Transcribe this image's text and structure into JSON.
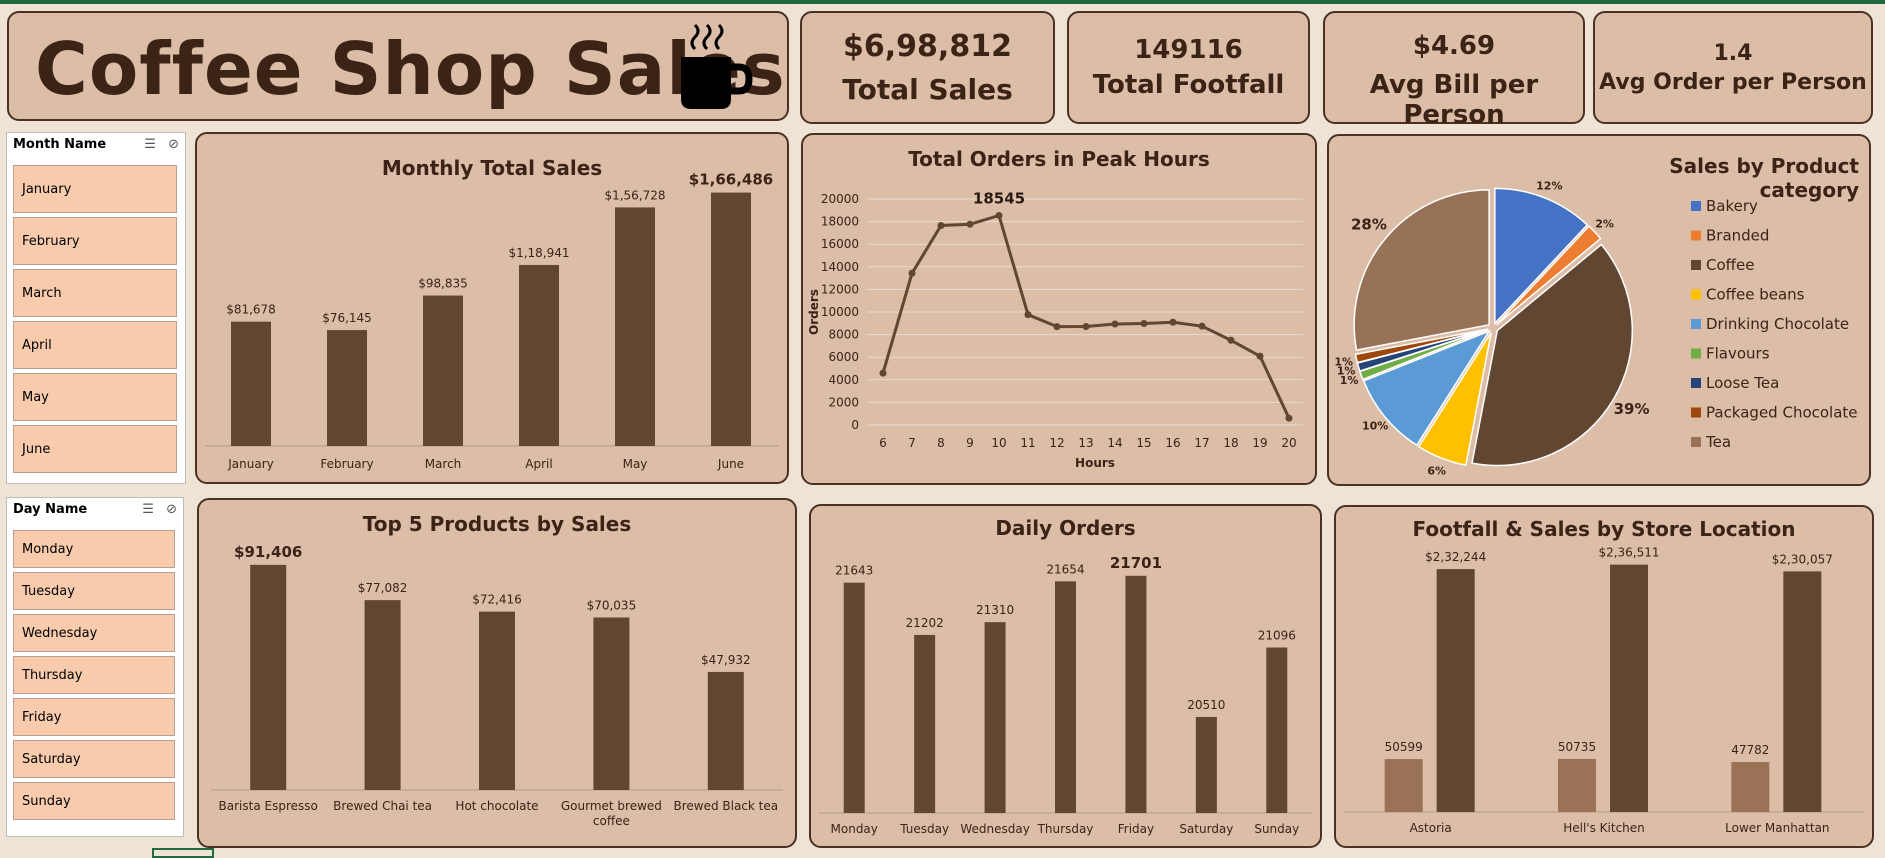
{
  "header": {
    "title": "Coffee Shop Sales",
    "icon": "coffee-cup-icon"
  },
  "kpis": {
    "total_sales": {
      "value": "$6,98,812",
      "label": "Total Sales"
    },
    "total_footfall": {
      "value": "149116",
      "label": "Total Footfall"
    },
    "avg_bill": {
      "value": "$4.69",
      "label": "Avg Bill per Person"
    },
    "avg_order": {
      "value": "1.4",
      "label": "Avg Order per Person"
    }
  },
  "slicers": {
    "month": {
      "header": "Month Name",
      "items": [
        "January",
        "February",
        "March",
        "April",
        "May",
        "June"
      ]
    },
    "day": {
      "header": "Day Name",
      "items": [
        "Monday",
        "Tuesday",
        "Wednesday",
        "Thursday",
        "Friday",
        "Saturday",
        "Sunday"
      ]
    }
  },
  "colors": {
    "bar": "#614631",
    "bar_light": "#9a7356",
    "card": "#dbbda8",
    "border": "#4a3122",
    "slicer_item": "#f8cbad"
  },
  "chart_data": [
    {
      "id": "monthly",
      "type": "bar",
      "title": "Monthly Total Sales",
      "categories": [
        "January",
        "February",
        "March",
        "April",
        "May",
        "June"
      ],
      "values": [
        81678,
        76145,
        98835,
        118941,
        156728,
        166486
      ],
      "labels": [
        "$81,678",
        "$76,145",
        "$98,835",
        "$1,18,941",
        "$1,56,728",
        "$1,66,486"
      ],
      "ylim": [
        0,
        180000
      ]
    },
    {
      "id": "peak",
      "type": "line",
      "title": "Total Orders in Peak Hours",
      "xlabel": "Hours",
      "ylabel": "Orders",
      "x": [
        6,
        7,
        8,
        9,
        10,
        11,
        12,
        13,
        14,
        15,
        16,
        17,
        18,
        19,
        20
      ],
      "values": [
        4594,
        13428,
        17654,
        17764,
        18545,
        9766,
        8708,
        8714,
        8933,
        8979,
        9093,
        8745,
        7498,
        6092,
        603
      ],
      "peak_label": "18545",
      "yticks": [
        0,
        2000,
        4000,
        6000,
        8000,
        10000,
        12000,
        14000,
        16000,
        18000,
        20000
      ],
      "ylim": [
        0,
        20000
      ],
      "grid": true
    },
    {
      "id": "category",
      "type": "pie",
      "title": "Sales by Product category",
      "legend_position": "right",
      "slices": [
        {
          "name": "Bakery",
          "value": 12,
          "label": "12%",
          "color": "#4472c4"
        },
        {
          "name": "Branded",
          "value": 2,
          "label": "2%",
          "color": "#ed7d31"
        },
        {
          "name": "Coffee",
          "value": 39,
          "label": "39%",
          "color": "#614631"
        },
        {
          "name": "Coffee beans",
          "value": 6,
          "label": "6%",
          "color": "#ffc000"
        },
        {
          "name": "Drinking Chocolate",
          "value": 10,
          "label": "10%",
          "color": "#5b9bd5"
        },
        {
          "name": "Flavours",
          "value": 1,
          "label": "1%",
          "color": "#70ad47"
        },
        {
          "name": "Loose Tea",
          "value": 1,
          "label": "1%",
          "color": "#264478"
        },
        {
          "name": "Packaged Chocolate",
          "value": 1,
          "label": "1%",
          "color": "#9e480e"
        },
        {
          "name": "Tea",
          "value": 28,
          "label": "28%",
          "color": "#987256"
        }
      ]
    },
    {
      "id": "top5",
      "type": "bar",
      "title": "Top 5 Products by Sales",
      "categories": [
        "Barista Espresso",
        "Brewed Chai tea",
        "Hot chocolate",
        "Gourmet brewed coffee",
        "Brewed Black tea"
      ],
      "values": [
        91406,
        77082,
        72416,
        70035,
        47932
      ],
      "labels": [
        "$91,406",
        "$77,082",
        "$72,416",
        "$70,035",
        "$47,932"
      ],
      "ylim": [
        0,
        95000
      ]
    },
    {
      "id": "daily",
      "type": "bar",
      "title": "Daily Orders",
      "categories": [
        "Monday",
        "Tuesday",
        "Wednesday",
        "Thursday",
        "Friday",
        "Saturday",
        "Sunday"
      ],
      "values": [
        21643,
        21202,
        21310,
        21654,
        21701,
        20510,
        21096
      ],
      "labels": [
        "21643",
        "21202",
        "21310",
        "21654",
        "21701",
        "20510",
        "21096"
      ],
      "ylim": [
        19700,
        21750
      ]
    },
    {
      "id": "store",
      "type": "bar",
      "title": "Footfall & Sales by Store Location",
      "categories": [
        "Astoria",
        "Hell's Kitchen",
        "Lower Manhattan"
      ],
      "series": [
        {
          "values": [
            50599,
            50735,
            47782
          ],
          "labels": [
            "50599",
            "50735",
            "47782"
          ]
        },
        {
          "values": [
            232244,
            236511,
            230057
          ],
          "labels": [
            "$2,32,244",
            "$2,36,511",
            "$2,30,057"
          ]
        }
      ],
      "ylim": [
        0,
        240000
      ]
    }
  ]
}
